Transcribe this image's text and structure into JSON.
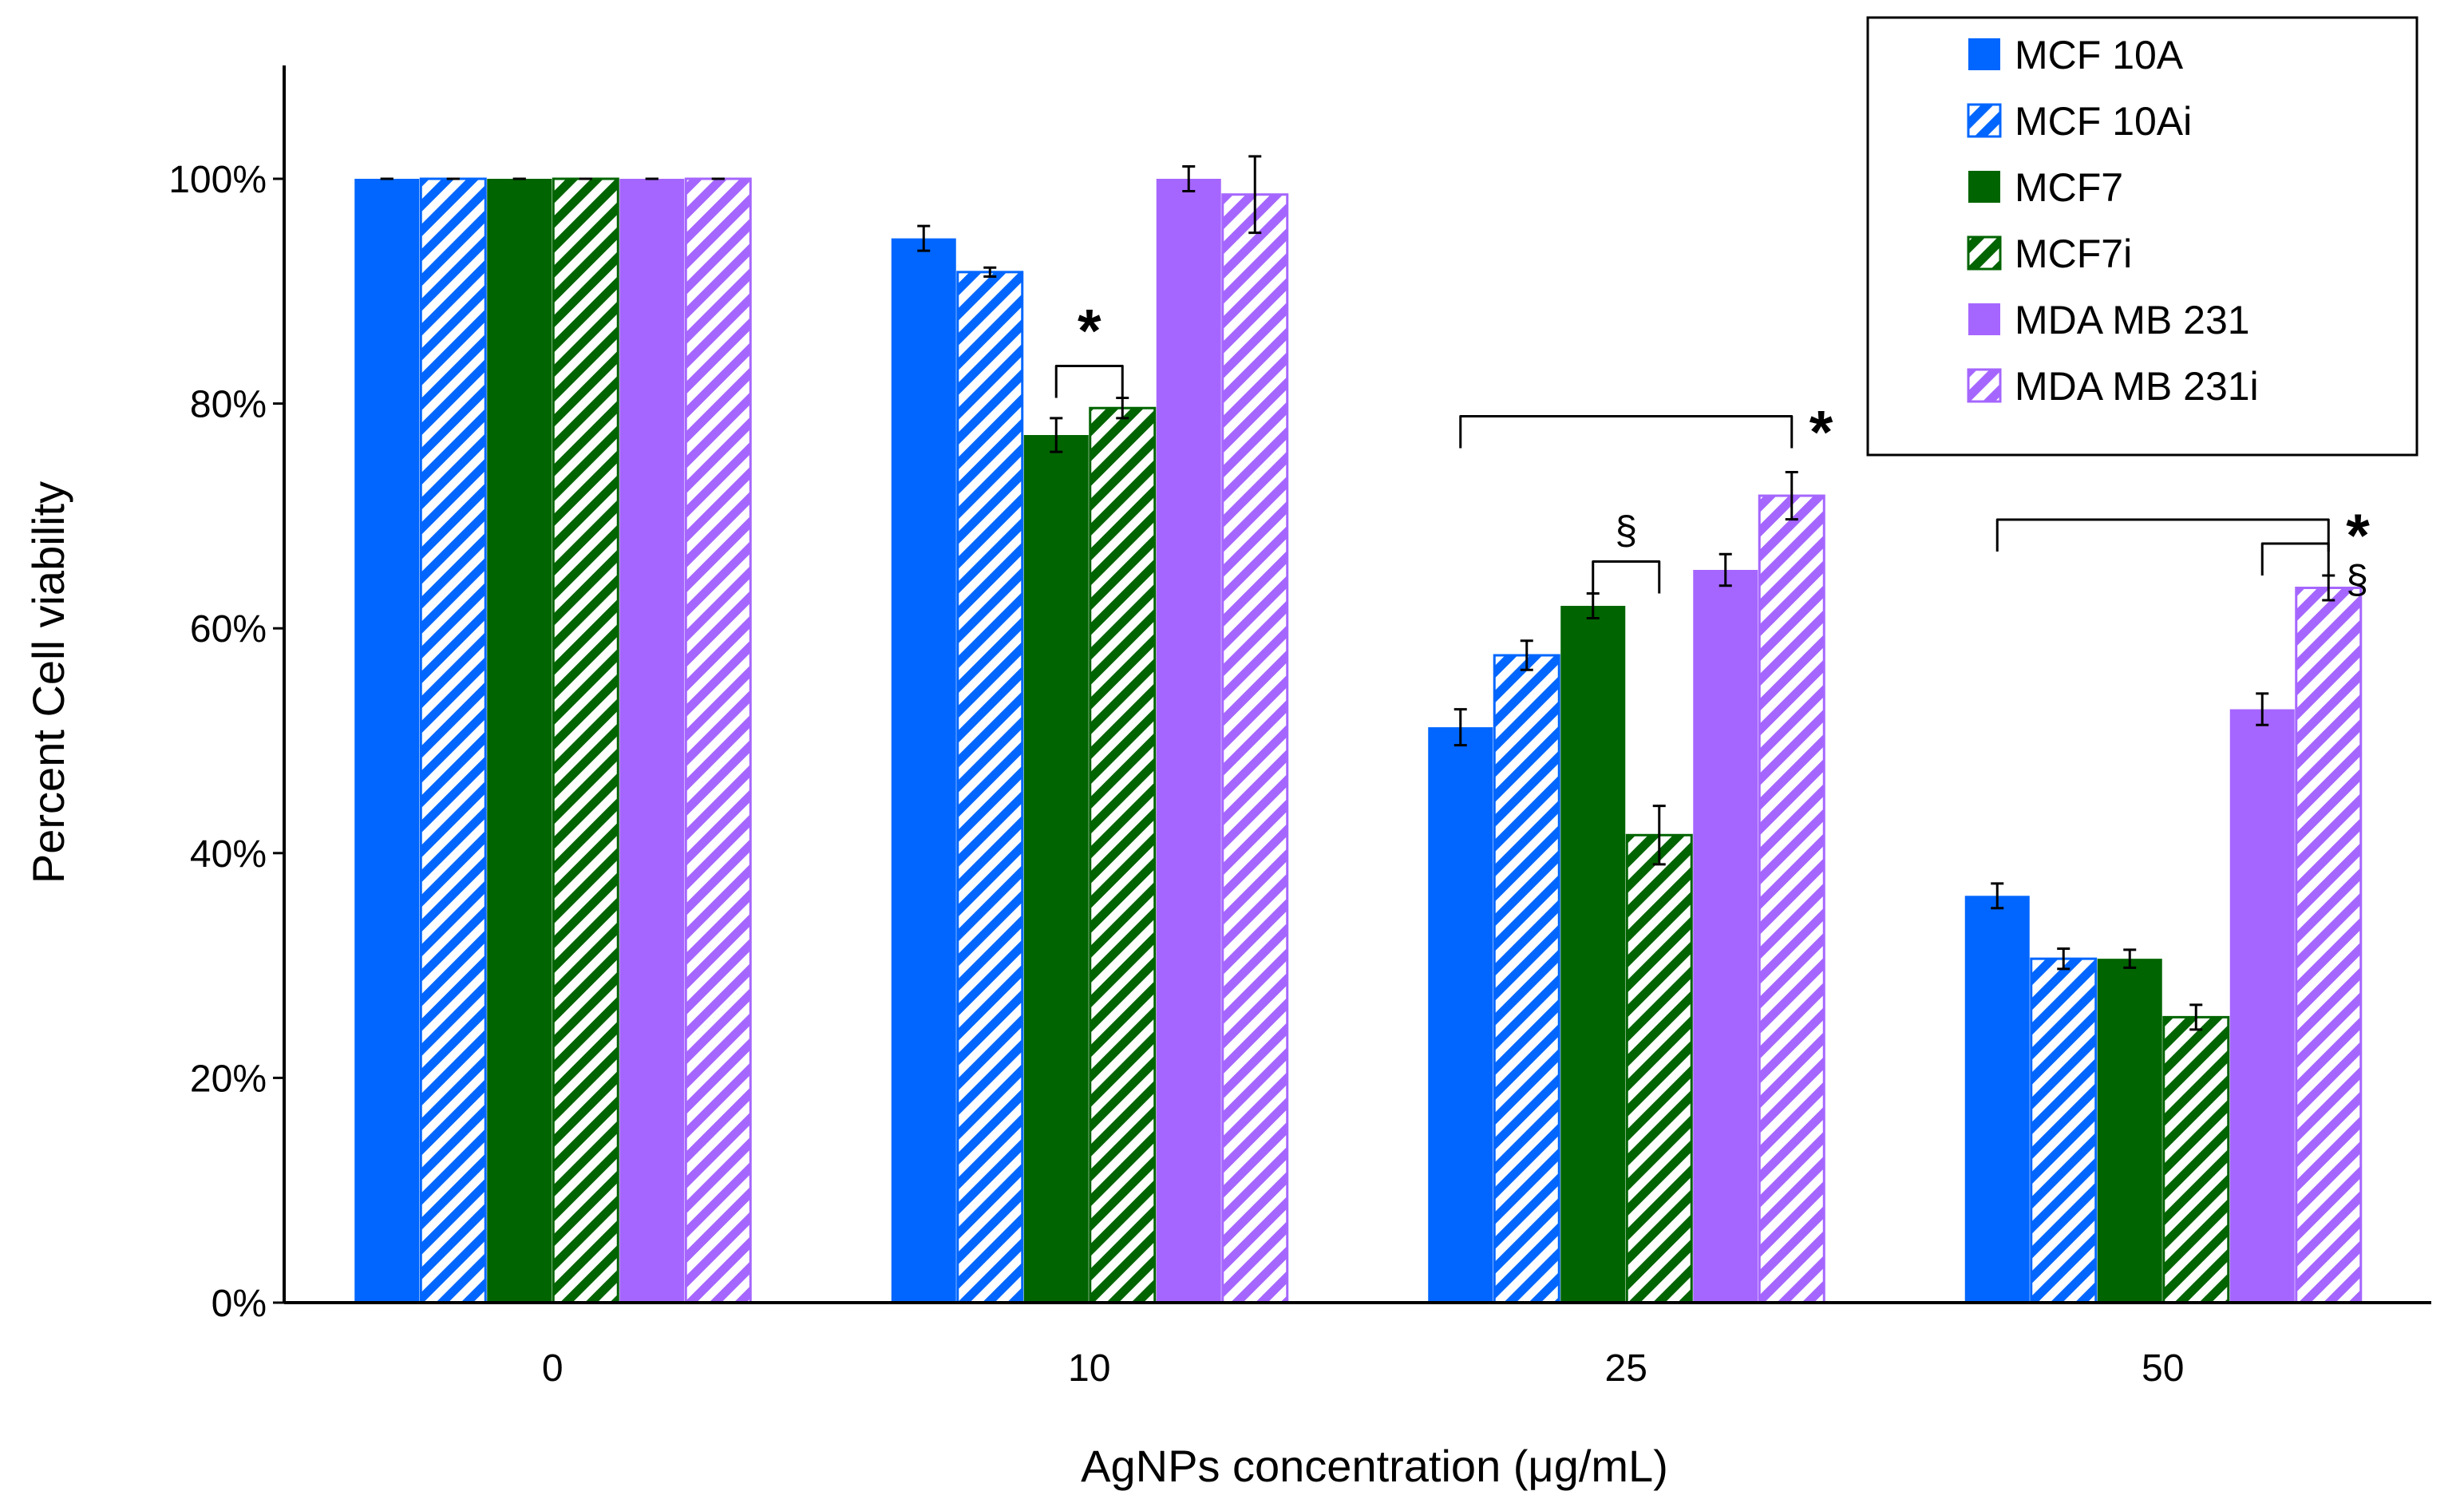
{
  "chart_data": {
    "type": "bar",
    "title": "",
    "xlabel": "AgNPs concentration (μg/mL)",
    "ylabel": "Percent Cell viability",
    "ylim": [
      0,
      110
    ],
    "yticks": [
      0,
      20,
      40,
      60,
      80,
      100
    ],
    "ytick_labels": [
      "0%",
      "20%",
      "40%",
      "60%",
      "80%",
      "100%"
    ],
    "categories": [
      "0",
      "10",
      "25",
      "50"
    ],
    "legend_position": "top-right",
    "grid": false,
    "series": [
      {
        "name": "MCF 10A",
        "color": "#0066FF",
        "pattern": "solid",
        "values": [
          100,
          94.7,
          51.2,
          36.2
        ],
        "errors": [
          0,
          1.1,
          1.6,
          1.1
        ]
      },
      {
        "name": "MCF 10Ai",
        "color": "#0066FF",
        "pattern": "hatched",
        "values": [
          100,
          91.7,
          57.6,
          30.6
        ],
        "errors": [
          0,
          0.4,
          1.3,
          0.9
        ]
      },
      {
        "name": "MCF7",
        "color": "#006400",
        "pattern": "solid",
        "values": [
          100,
          77.2,
          62.0,
          30.6
        ],
        "errors": [
          0,
          1.5,
          1.1,
          0.8
        ]
      },
      {
        "name": "MCF7i",
        "color": "#006400",
        "pattern": "hatched",
        "values": [
          100,
          79.6,
          41.6,
          25.4
        ],
        "errors": [
          0,
          0.9,
          2.6,
          1.1
        ]
      },
      {
        "name": "MDA MB 231",
        "color": "#A566FF",
        "pattern": "solid",
        "values": [
          100,
          100.0,
          65.2,
          52.8
        ],
        "errors": [
          0,
          1.1,
          1.4,
          1.4
        ]
      },
      {
        "name": "MDA MB 231i",
        "color": "#A566FF",
        "pattern": "hatched",
        "values": [
          100,
          98.6,
          71.8,
          63.6
        ],
        "errors": [
          0,
          3.4,
          2.1,
          1.1
        ]
      }
    ],
    "annotations": [
      {
        "symbol": "*",
        "category": "10",
        "from_series": 2,
        "to_series": 3
      },
      {
        "symbol": "§",
        "category": "25",
        "from_series": 2,
        "to_series": 3
      },
      {
        "symbol": "*",
        "category": "25",
        "from_series": 0,
        "to_series": 5
      },
      {
        "symbol": "*",
        "category": "50",
        "from_series": 0,
        "to_series": 5
      },
      {
        "symbol": "§",
        "category": "50",
        "from_series": 4,
        "to_series": 5
      }
    ]
  }
}
